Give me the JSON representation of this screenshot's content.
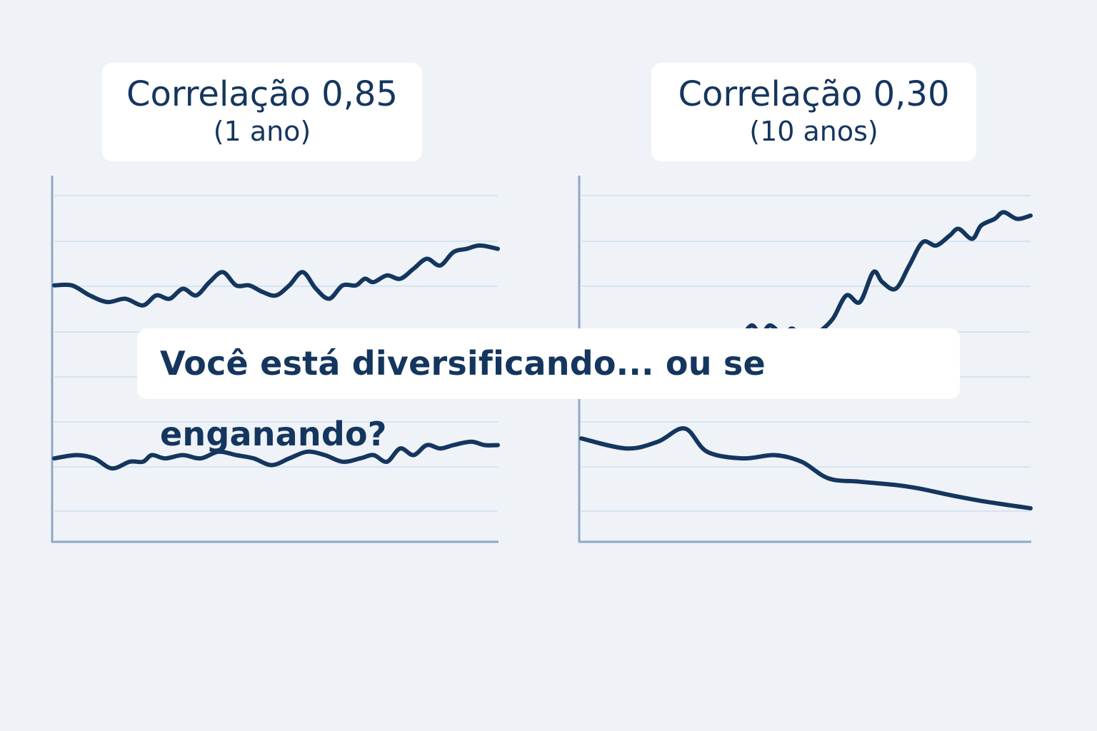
{
  "colors": {
    "background": "#eff3f8",
    "line": "#14365e",
    "axis": "#8fa8c4",
    "grid": "#d6e3f0",
    "card": "#ffffff"
  },
  "question": "Você está diversificando... ou se enganando?",
  "chart_data": [
    {
      "type": "line",
      "title": "Correlação 0,85",
      "subtitle": "(1 ano)",
      "xlim": [
        0,
        100
      ],
      "ylim": [
        0,
        100
      ],
      "grid": true,
      "series": [
        {
          "x": [
            0,
            4,
            8,
            12,
            16,
            20,
            23,
            26,
            29,
            32,
            35,
            38,
            41,
            44,
            47,
            50,
            53,
            56,
            59,
            62,
            65,
            68,
            70,
            72,
            75,
            78,
            81,
            84,
            87,
            90,
            93,
            96,
            100
          ],
          "y": [
            73,
            73,
            70,
            68,
            69,
            67,
            70,
            69,
            72,
            70,
            74,
            77,
            73,
            73,
            71,
            70,
            73,
            77,
            72,
            69,
            73,
            73,
            75,
            74,
            76,
            75,
            78,
            81,
            79,
            83,
            84,
            85,
            84
          ]
        },
        {
          "x": [
            0,
            5,
            9,
            13,
            17,
            20,
            22,
            25,
            29,
            33,
            37,
            41,
            45,
            49,
            53,
            57,
            61,
            65,
            69,
            72,
            75,
            78,
            81,
            84,
            87,
            90,
            94,
            97,
            100
          ],
          "y": [
            21,
            22,
            21,
            18,
            20,
            20,
            22,
            21,
            22,
            21,
            23,
            22,
            21,
            19,
            21,
            23,
            22,
            20,
            21,
            22,
            20,
            24,
            22,
            25,
            24,
            25,
            26,
            25,
            25
          ]
        }
      ]
    },
    {
      "type": "line",
      "title": "Correlação 0,30",
      "subtitle": "(10 anos)",
      "xlim": [
        0,
        100
      ],
      "ylim": [
        0,
        100
      ],
      "grid": true,
      "series": [
        {
          "x": [
            36,
            38,
            40,
            42,
            45,
            47,
            50,
            53,
            56,
            59,
            62,
            65,
            67,
            70,
            73,
            76,
            79,
            82,
            84,
            87,
            89,
            92,
            94,
            97,
            100
          ],
          "y": [
            58,
            61,
            58,
            61,
            58,
            60,
            56,
            59,
            63,
            70,
            68,
            77,
            74,
            72,
            79,
            86,
            85,
            88,
            90,
            87,
            91,
            93,
            95,
            93,
            94
          ]
        },
        {
          "x": [
            0,
            10,
            17,
            23,
            28,
            36,
            43,
            49,
            55,
            62,
            70,
            75,
            82,
            90,
            100
          ],
          "y": [
            27,
            24,
            26,
            30,
            23,
            21,
            22,
            20,
            15,
            14,
            13,
            12,
            10,
            8,
            6
          ]
        }
      ]
    }
  ]
}
